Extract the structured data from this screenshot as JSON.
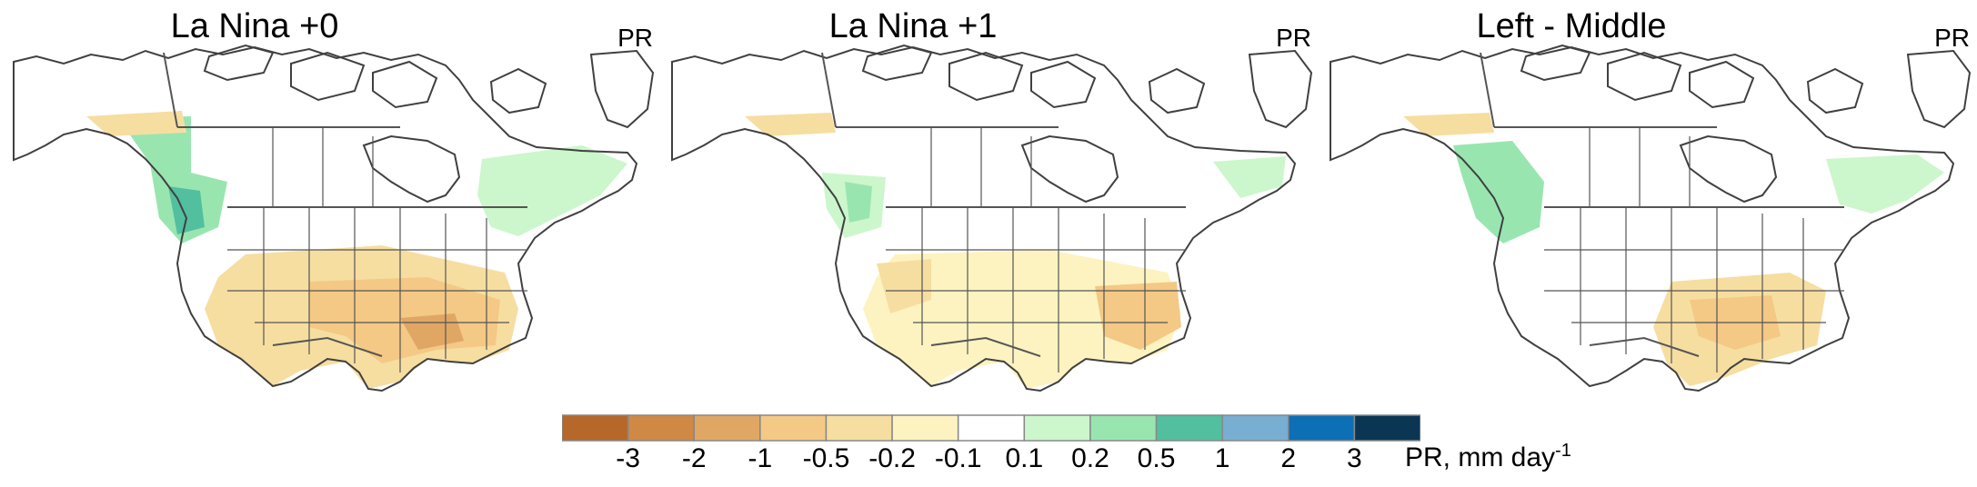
{
  "panels": [
    {
      "title": "La Nina +0",
      "variable": "PR"
    },
    {
      "title": "La Nina +1",
      "variable": "PR"
    },
    {
      "title": "Left - Middle",
      "variable": "PR"
    }
  ],
  "colorbar": {
    "colors": [
      "#b5682a",
      "#cf8945",
      "#e0a764",
      "#f3c985",
      "#f6dea1",
      "#fdf3c0",
      "#ffffff",
      "#ccf6cc",
      "#99e5b0",
      "#52bf9f",
      "#78aed1",
      "#0d6fb6",
      "#0a3654"
    ],
    "ticks": [
      "-3",
      "-2",
      "-1",
      "-0.5",
      "-0.2",
      "-0.1",
      "0.1",
      "0.2",
      "0.5",
      "1",
      "2",
      "3"
    ],
    "units_text": "PR, mm day",
    "units_sup": "-1"
  },
  "colors": {
    "dry_strong": "#e0a764",
    "dry_mid": "#f3c985",
    "dry_weak": "#f6dea1",
    "dry_faint": "#fdf3c0",
    "wet_weak": "#ccf6cc",
    "wet_mid": "#99e5b0",
    "wet_strong": "#52bf9f",
    "outline": "#404040"
  }
}
